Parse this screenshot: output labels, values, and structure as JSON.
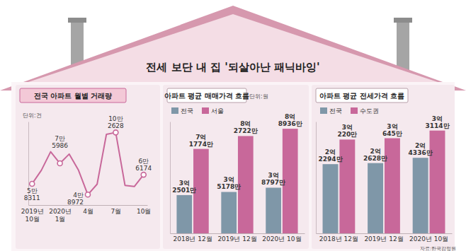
{
  "title": "전세 보단 내 집 '되살아난 패닉바잉'",
  "source": "자료:한국감정원",
  "chart_data": [
    {
      "type": "line",
      "title": "전국 아파트 월별 거래량",
      "ylabel": "단위:건",
      "categories": [
        "2019년 10월",
        null,
        null,
        "2020년 1월",
        null,
        null,
        "4월",
        null,
        null,
        "7월",
        null,
        null,
        "10월"
      ],
      "values": [
        58311,
        70000,
        86000,
        75986,
        84000,
        70000,
        48972,
        58000,
        101000,
        102628,
        57000,
        56000,
        66174
      ],
      "value_labels": [
        "5만 8311",
        null,
        null,
        "7만 5986",
        null,
        null,
        "4만 8972",
        null,
        null,
        "10만 2628",
        null,
        null,
        "6만 6174"
      ],
      "color": "#c8689a",
      "marker": "circle",
      "data_labels": true,
      "ylim": [
        40000,
        112000
      ],
      "grid": false,
      "tick_labels": "x"
    },
    {
      "type": "bar",
      "title": "아파트 평균 매매가격 흐름",
      "ylabel": "단위:원",
      "categories": [
        "2018년 12월",
        "2019년 12월",
        "2020년 10월"
      ],
      "series": [
        {
          "name": "전국",
          "color": "#7f97a8",
          "values": [
            325010000,
            351780000,
            387970000
          ],
          "value_labels": [
            "3억 2501만",
            "3억 5178만",
            "3억 8797만"
          ]
        },
        {
          "name": "서울",
          "color": "#c8689a",
          "values": [
            717740000,
            827220000,
            889360000
          ],
          "value_labels": [
            "7억 1774만",
            "8억 2722만",
            "8억 8936만"
          ]
        }
      ],
      "ylim": [
        0,
        950000000
      ],
      "legend": "top-left",
      "data_labels": true,
      "grid": false,
      "tick_labels": "x"
    },
    {
      "type": "bar",
      "title": "아파트 평균 전세가격 흐름",
      "categories": [
        "2018년 12월",
        "2019년 12월",
        "2020년 10월"
      ],
      "series": [
        {
          "name": "전국",
          "color": "#7f97a8",
          "values": [
            222940000,
            226280000,
            243360000
          ],
          "value_labels": [
            "2억 2294만",
            "2억 2628만",
            "2억 4336만"
          ]
        },
        {
          "name": "수도권",
          "color": "#c8689a",
          "values": [
            302200000,
            306450000,
            331140000
          ],
          "value_labels": [
            "3억 220만",
            "3억 645만",
            "3억 3114만"
          ]
        }
      ],
      "ylim": [
        0,
        360000000
      ],
      "legend": "top-left",
      "data_labels": true,
      "grid": false,
      "tick_labels": "x"
    }
  ]
}
